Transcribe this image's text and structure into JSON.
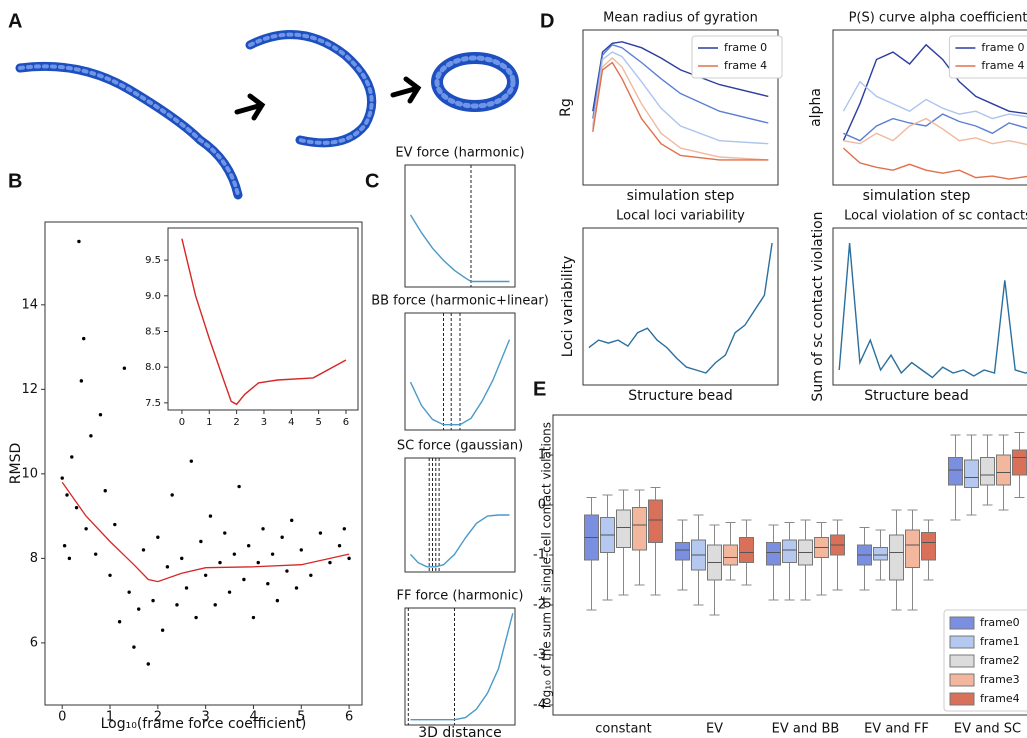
{
  "panel_labels": [
    "A",
    "B",
    "C",
    "D",
    "E"
  ],
  "chart_data": [
    {
      "type": "scatter",
      "xlabel": "Log₁₀(frame force coefficient)",
      "ylabel": "RMSD",
      "xlim": [
        -0.36,
        6.27
      ],
      "ylim": [
        4.53,
        15.96
      ],
      "xticks": [
        0,
        1,
        2,
        3,
        4,
        5,
        6
      ],
      "yticks": [
        6,
        8,
        10,
        12,
        14
      ],
      "color": "#000000",
      "x": [
        0.0,
        0.05,
        0.1,
        0.15,
        0.2,
        0.3,
        0.35,
        0.4,
        0.45,
        0.5,
        0.6,
        0.7,
        0.8,
        0.9,
        1.0,
        1.1,
        1.2,
        1.3,
        1.4,
        1.5,
        1.6,
        1.7,
        1.8,
        1.9,
        2.0,
        2.1,
        2.2,
        2.3,
        2.4,
        2.5,
        2.6,
        2.7,
        2.8,
        2.9,
        3.0,
        3.1,
        3.2,
        3.3,
        3.4,
        3.5,
        3.6,
        3.7,
        3.8,
        3.9,
        4.0,
        4.1,
        4.2,
        4.3,
        4.4,
        4.5,
        4.6,
        4.7,
        4.8,
        4.9,
        5.0,
        5.2,
        5.4,
        5.6,
        5.8,
        5.9,
        6.0
      ],
      "values": [
        9.9,
        8.3,
        9.5,
        8.0,
        10.4,
        9.2,
        15.5,
        12.2,
        13.2,
        8.7,
        10.9,
        8.1,
        11.4,
        9.6,
        7.6,
        8.8,
        6.5,
        12.5,
        7.2,
        5.9,
        6.8,
        8.2,
        5.5,
        7.0,
        8.5,
        6.3,
        7.8,
        9.5,
        6.9,
        8.0,
        7.3,
        10.3,
        6.6,
        8.4,
        7.6,
        9.0,
        6.9,
        7.9,
        8.6,
        7.2,
        8.1,
        9.7,
        7.5,
        8.3,
        6.6,
        7.9,
        8.7,
        7.4,
        8.1,
        7.0,
        8.5,
        7.7,
        8.9,
        7.3,
        8.2,
        7.6,
        8.6,
        7.9,
        8.3,
        8.7,
        8.0
      ],
      "trend": {
        "color": "#d62728",
        "x": [
          0,
          0.5,
          1,
          1.5,
          1.8,
          2,
          2.5,
          3,
          4,
          5,
          6
        ],
        "values": [
          9.8,
          9.0,
          8.4,
          7.85,
          7.5,
          7.45,
          7.65,
          7.78,
          7.8,
          7.85,
          8.1
        ]
      }
    },
    {
      "type": "line",
      "xlim": [
        -0.51,
        6.44
      ],
      "ylim": [
        7.4,
        9.95
      ],
      "xticks": [
        0,
        1,
        2,
        3,
        4,
        5,
        6
      ],
      "yticks": [
        7.5,
        {
          "value": 8,
          "label": "8.0"
        },
        8.5,
        {
          "value": 9,
          "label": "9.0"
        },
        9.5
      ],
      "x": [
        0,
        0.5,
        1,
        1.5,
        1.8,
        2,
        2.3,
        2.8,
        3.5,
        4.8,
        6
      ],
      "series": [
        {
          "color": "#d62728",
          "values": [
            9.8,
            9.0,
            8.4,
            7.85,
            7.52,
            7.48,
            7.62,
            7.78,
            7.82,
            7.85,
            8.1
          ]
        }
      ]
    },
    {
      "type": "line",
      "title": "EV force (harmonic)",
      "xlim": [
        0,
        1
      ],
      "ylim": [
        -0.05,
        1.05
      ],
      "x": [
        0.05,
        0.15,
        0.25,
        0.35,
        0.45,
        0.55,
        0.6,
        0.7,
        0.8,
        0.95
      ],
      "vlines": [
        0.6
      ],
      "series": [
        {
          "color": "#4a9ac8",
          "values": [
            0.6,
            0.44,
            0.3,
            0.19,
            0.1,
            0.03,
            0.0,
            0.0,
            0.0,
            0.0
          ]
        }
      ]
    },
    {
      "type": "line",
      "title": "BB force (harmonic+linear)",
      "xlim": [
        0,
        1
      ],
      "ylim": [
        -0.05,
        1.05
      ],
      "x": [
        0.05,
        0.15,
        0.25,
        0.35,
        0.42,
        0.5,
        0.6,
        0.7,
        0.8,
        0.95
      ],
      "vlines": [
        0.35,
        0.42,
        0.5
      ],
      "series": [
        {
          "color": "#4a9ac8",
          "values": [
            0.4,
            0.18,
            0.05,
            0.0,
            0.0,
            0.0,
            0.06,
            0.22,
            0.42,
            0.8
          ]
        }
      ]
    },
    {
      "type": "line",
      "title": "SC force (gaussian)",
      "xlim": [
        0,
        1
      ],
      "ylim": [
        -0.05,
        1.05
      ],
      "x": [
        0.05,
        0.12,
        0.2,
        0.28,
        0.35,
        0.45,
        0.55,
        0.65,
        0.75,
        0.85,
        0.95
      ],
      "vlines": [
        0.22,
        0.25,
        0.28,
        0.31
      ],
      "series": [
        {
          "color": "#4a9ac8",
          "values": [
            0.12,
            0.04,
            0.0,
            0.0,
            0.02,
            0.12,
            0.28,
            0.42,
            0.49,
            0.5,
            0.5
          ]
        }
      ]
    },
    {
      "type": "line",
      "title": "FF force (harmonic)",
      "xlabel": "3D distance",
      "xlim": [
        0,
        1
      ],
      "ylim": [
        -0.05,
        1.05
      ],
      "x": [
        0.05,
        0.2,
        0.35,
        0.45,
        0.55,
        0.65,
        0.75,
        0.85,
        0.98
      ],
      "vlines": [
        0.03,
        0.45
      ],
      "series": [
        {
          "color": "#4a9ac8",
          "values": [
            0.0,
            0.0,
            0.0,
            0.0,
            0.02,
            0.1,
            0.25,
            0.48,
            1.0
          ]
        }
      ]
    },
    {
      "type": "line",
      "title": "Mean radius of gyration",
      "xlabel": "simulation step",
      "ylabel": "Rg",
      "xlim": [
        0,
        1
      ],
      "ylim": [
        0,
        1.05
      ],
      "legend": "upper right",
      "x": [
        0.05,
        0.1,
        0.15,
        0.2,
        0.3,
        0.4,
        0.5,
        0.7,
        0.95
      ],
      "series": [
        {
          "name": "frame 0",
          "color": "#2c3e9e",
          "values": [
            0.5,
            0.9,
            0.96,
            0.97,
            0.93,
            0.86,
            0.78,
            0.68,
            0.6
          ]
        },
        {
          "color": "#5b7fd4",
          "values": [
            0.45,
            0.88,
            0.95,
            0.93,
            0.83,
            0.72,
            0.62,
            0.5,
            0.42
          ]
        },
        {
          "color": "#aec4ee",
          "values": [
            0.4,
            0.85,
            0.9,
            0.87,
            0.7,
            0.52,
            0.4,
            0.3,
            0.28
          ]
        },
        {
          "color": "#f0b9a0",
          "values": [
            0.38,
            0.8,
            0.86,
            0.8,
            0.55,
            0.35,
            0.25,
            0.19,
            0.17
          ]
        },
        {
          "name": "frame 4",
          "color": "#e0704c",
          "values": [
            0.36,
            0.78,
            0.83,
            0.72,
            0.45,
            0.28,
            0.2,
            0.17,
            0.17
          ]
        }
      ]
    },
    {
      "type": "line",
      "title": "P(S) curve alpha coefficient",
      "xlabel": "simulation step",
      "ylabel": "alpha",
      "xlim": [
        0,
        1
      ],
      "ylim": [
        0,
        1.05
      ],
      "legend": "upper right",
      "x": [
        0.05,
        0.13,
        0.21,
        0.29,
        0.37,
        0.45,
        0.53,
        0.61,
        0.69,
        0.77,
        0.85,
        0.95
      ],
      "series": [
        {
          "name": "frame 0",
          "color": "#2c3e9e",
          "values": [
            0.3,
            0.55,
            0.85,
            0.9,
            0.82,
            0.95,
            0.85,
            0.7,
            0.6,
            0.55,
            0.5,
            0.48
          ]
        },
        {
          "color": "#5b7fd4",
          "values": [
            0.35,
            0.3,
            0.4,
            0.45,
            0.42,
            0.4,
            0.48,
            0.43,
            0.4,
            0.35,
            0.42,
            0.38
          ]
        },
        {
          "color": "#aec4ee",
          "values": [
            0.5,
            0.7,
            0.6,
            0.55,
            0.5,
            0.58,
            0.52,
            0.48,
            0.5,
            0.45,
            0.48,
            0.46
          ]
        },
        {
          "color": "#f0b9a0",
          "values": [
            0.3,
            0.28,
            0.35,
            0.3,
            0.4,
            0.45,
            0.38,
            0.3,
            0.32,
            0.28,
            0.3,
            0.27
          ]
        },
        {
          "name": "frame 4",
          "color": "#e0704c",
          "values": [
            0.25,
            0.15,
            0.12,
            0.1,
            0.14,
            0.1,
            0.08,
            0.1,
            0.05,
            0.06,
            0.04,
            0.06
          ]
        }
      ]
    },
    {
      "type": "line",
      "title": "Local loci variability",
      "xlabel": "Structure bead",
      "ylabel": "Loci variability",
      "xlim": [
        0,
        1
      ],
      "ylim": [
        0,
        1.05
      ],
      "x": [
        0.03,
        0.08,
        0.13,
        0.18,
        0.23,
        0.28,
        0.33,
        0.38,
        0.43,
        0.48,
        0.53,
        0.58,
        0.63,
        0.68,
        0.73,
        0.78,
        0.83,
        0.88,
        0.93,
        0.97
      ],
      "series": [
        {
          "color": "#2a6f9e",
          "values": [
            0.25,
            0.3,
            0.28,
            0.3,
            0.26,
            0.35,
            0.38,
            0.3,
            0.25,
            0.18,
            0.12,
            0.1,
            0.08,
            0.15,
            0.2,
            0.35,
            0.4,
            0.5,
            0.6,
            0.95
          ]
        }
      ]
    },
    {
      "type": "line",
      "title": "Local violation of sc contacts",
      "xlabel": "Structure bead",
      "ylabel": "Sum of sc contact violation",
      "xlim": [
        0,
        1
      ],
      "ylim": [
        0,
        1.05
      ],
      "x": [
        0.03,
        0.08,
        0.13,
        0.18,
        0.23,
        0.28,
        0.33,
        0.38,
        0.43,
        0.48,
        0.53,
        0.58,
        0.63,
        0.68,
        0.73,
        0.78,
        0.83,
        0.88,
        0.93,
        0.97
      ],
      "series": [
        {
          "color": "#2a6f9e",
          "values": [
            0.1,
            0.95,
            0.15,
            0.3,
            0.1,
            0.2,
            0.08,
            0.15,
            0.1,
            0.05,
            0.12,
            0.08,
            0.1,
            0.06,
            0.1,
            0.08,
            0.7,
            0.1,
            0.08,
            0.1
          ]
        }
      ]
    },
    {
      "type": "box",
      "ylabel": "log₁₀ of the sum of single-cell contact violations",
      "ylim": [
        -4.2,
        1.8
      ],
      "yticks": [
        -4,
        -3,
        -2,
        -1,
        0,
        1
      ],
      "legend": "lower right",
      "categories": [
        "constant",
        "EV",
        "EV and BB",
        "EV and FF",
        "EV and SC"
      ],
      "series": [
        {
          "name": "frame0",
          "color": "#7b8fe0",
          "whislo": [
            -2.1,
            -1.7,
            -1.9,
            -1.7,
            -0.3
          ],
          "q1": [
            -1.1,
            -1.1,
            -1.2,
            -1.2,
            0.4
          ],
          "med": [
            -0.65,
            -0.9,
            -0.95,
            -1.0,
            0.7
          ],
          "q3": [
            -0.2,
            -0.75,
            -0.75,
            -0.8,
            0.95
          ],
          "whishi": [
            0.15,
            -0.3,
            -0.4,
            -0.45,
            1.4
          ]
        },
        {
          "name": "frame1",
          "color": "#b4c8f0",
          "whislo": [
            -1.9,
            -2.0,
            -1.9,
            -1.5,
            -0.2
          ],
          "q1": [
            -0.95,
            -1.3,
            -1.15,
            -1.1,
            0.35
          ],
          "med": [
            -0.6,
            -1.0,
            -0.9,
            -1.0,
            0.55
          ],
          "q3": [
            -0.25,
            -0.7,
            -0.7,
            -0.85,
            0.9
          ],
          "whishi": [
            0.2,
            -0.2,
            -0.35,
            -0.5,
            1.4
          ]
        },
        {
          "name": "frame2",
          "color": "#dcdcdc",
          "whislo": [
            -1.8,
            -2.2,
            -1.9,
            -2.1,
            0.0
          ],
          "q1": [
            -0.85,
            -1.5,
            -1.2,
            -1.5,
            0.4
          ],
          "med": [
            -0.45,
            -1.15,
            -0.95,
            -0.95,
            0.6
          ],
          "q3": [
            -0.1,
            -0.8,
            -0.7,
            -0.6,
            0.95
          ],
          "whishi": [
            0.3,
            -0.4,
            -0.3,
            -0.1,
            1.4
          ]
        },
        {
          "name": "frame3",
          "color": "#f2b79c",
          "whislo": [
            -1.6,
            -1.5,
            -1.8,
            -2.1,
            -0.1
          ],
          "q1": [
            -0.9,
            -1.2,
            -1.05,
            -1.25,
            0.4
          ],
          "med": [
            -0.4,
            -1.05,
            -0.85,
            -0.8,
            0.65
          ],
          "q3": [
            -0.05,
            -0.8,
            -0.65,
            -0.5,
            1.0
          ],
          "whishi": [
            0.3,
            -0.35,
            -0.35,
            -0.1,
            1.4
          ]
        },
        {
          "name": "frame4",
          "color": "#d9705a",
          "whislo": [
            -1.8,
            -1.6,
            -1.7,
            -1.5,
            0.15
          ],
          "q1": [
            -0.75,
            -1.15,
            -1.0,
            -1.1,
            0.6
          ],
          "med": [
            -0.3,
            -0.95,
            -0.8,
            -0.75,
            0.95
          ],
          "q3": [
            0.1,
            -0.65,
            -0.6,
            -0.55,
            1.1
          ],
          "whishi": [
            0.35,
            -0.3,
            -0.3,
            -0.3,
            1.45
          ]
        }
      ]
    }
  ]
}
